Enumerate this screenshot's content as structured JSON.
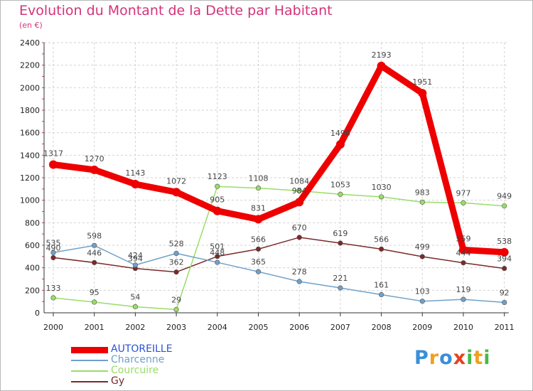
{
  "chart_data": {
    "type": "line",
    "title": "Evolution du Montant de la Dette par Habitant",
    "subtitle": "(en €)",
    "x": [
      "2000",
      "2001",
      "2002",
      "2003",
      "2004",
      "2005",
      "2006",
      "2007",
      "2008",
      "2009",
      "2010",
      "2011"
    ],
    "ylim": [
      0,
      2400
    ],
    "yticks": [
      0,
      200,
      400,
      600,
      800,
      1000,
      1200,
      1400,
      1600,
      1800,
      2000,
      2200,
      2400
    ],
    "grid": true,
    "legend_position": "bottom-left",
    "series": [
      {
        "name": "AUTOREILLE",
        "color": "#ee0000",
        "values": [
          1317,
          1270,
          1143,
          1072,
          905,
          831,
          984,
          1496,
          2193,
          1951,
          559,
          538
        ],
        "labels": [
          "1317",
          "1270",
          "1143",
          "1072",
          "905",
          "831",
          "984",
          "1496",
          "2193",
          "1951",
          "559",
          "538"
        ]
      },
      {
        "name": "Charcenne",
        "color": "#6fa1ca",
        "values": [
          535,
          598,
          424,
          528,
          448,
          365,
          278,
          221,
          161,
          103,
          119,
          92
        ],
        "labels": [
          "535",
          "598",
          "424",
          "528",
          "448",
          "365",
          "278",
          "221",
          "161",
          "103",
          "119",
          "92"
        ]
      },
      {
        "name": "Courcuire",
        "color": "#99dd66",
        "values": [
          133,
          95,
          54,
          29,
          1123,
          1108,
          1084,
          1053,
          1030,
          983,
          977,
          949
        ],
        "labels": [
          "133",
          "95",
          "54",
          "29",
          "1123",
          "1108",
          "1084",
          "1053",
          "1030",
          "983",
          "977",
          "949"
        ]
      },
      {
        "name": "Gy",
        "color": "#7a2a2a",
        "values": [
          490,
          446,
          394,
          362,
          501,
          566,
          670,
          619,
          566,
          499,
          444,
          394
        ],
        "labels": [
          "490",
          "446",
          "394",
          "362",
          "501",
          "566",
          "670",
          "619",
          "566",
          "499",
          "444",
          "394"
        ]
      }
    ]
  },
  "logo": {
    "letters": [
      "P",
      "r",
      "o",
      "x",
      "i",
      "t",
      "i"
    ],
    "colors": [
      "#3a8fd8",
      "#f0a020",
      "#3a8fd8",
      "#e84020",
      "#48b848",
      "#f0a020",
      "#48b848"
    ]
  }
}
